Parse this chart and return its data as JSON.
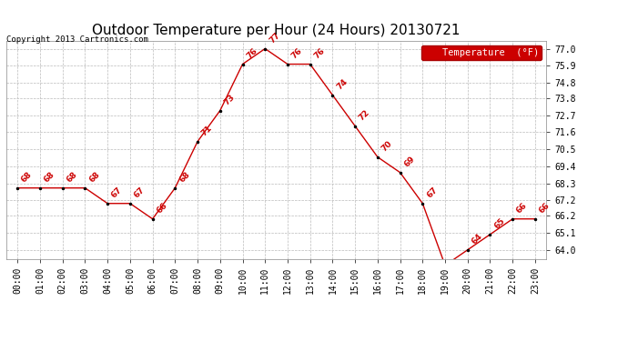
{
  "title": "Outdoor Temperature per Hour (24 Hours) 20130721",
  "copyright_text": "Copyright 2013 Cartronics.com",
  "legend_label": "Temperature  (°F)",
  "hours": [
    0,
    1,
    2,
    3,
    4,
    5,
    6,
    7,
    8,
    9,
    10,
    11,
    12,
    13,
    14,
    15,
    16,
    17,
    18,
    19,
    20,
    21,
    22,
    23
  ],
  "temps": [
    68,
    68,
    68,
    68,
    67,
    67,
    66,
    68,
    71,
    73,
    76,
    77,
    76,
    76,
    74,
    72,
    70,
    69,
    67,
    63,
    64,
    65,
    66,
    66
  ],
  "yticks": [
    64.0,
    65.1,
    66.2,
    67.2,
    68.3,
    69.4,
    70.5,
    71.6,
    72.7,
    73.8,
    74.8,
    75.9,
    77.0
  ],
  "ylim": [
    63.4,
    77.5
  ],
  "line_color": "#cc0000",
  "marker_color": "#000000",
  "label_color": "#cc0000",
  "legend_bg": "#cc0000",
  "legend_text_color": "#ffffff",
  "grid_color": "#bbbbbb",
  "background_color": "#ffffff",
  "title_fontsize": 11,
  "copyright_fontsize": 6.5,
  "label_fontsize": 6.5,
  "tick_fontsize": 7,
  "legend_fontsize": 7.5
}
